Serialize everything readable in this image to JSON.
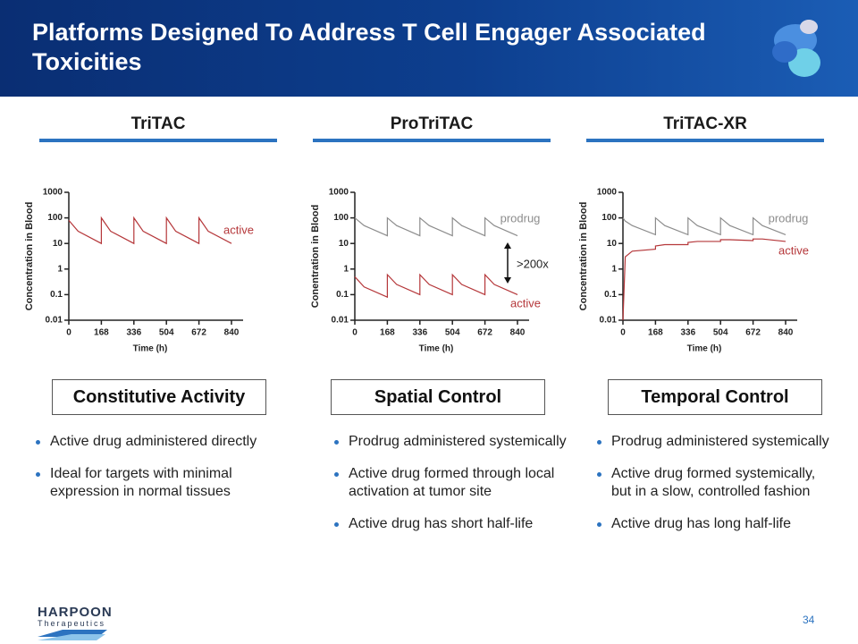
{
  "title": "Platforms Designed To Address T Cell Engager Associated Toxicities",
  "columns": [
    {
      "heading": "TriTAC",
      "box": "Constitutive Activity",
      "bullets": [
        "Active drug administered directly",
        "Ideal for targets with minimal expression in normal tissues"
      ]
    },
    {
      "heading": "ProTriTAC",
      "box": "Spatial Control",
      "bullets": [
        "Prodrug administered systemically",
        "Active drug formed through local activation at tumor site",
        "Active drug has short half-life"
      ]
    },
    {
      "heading": "TriTAC-XR",
      "box": "Temporal Control",
      "bullets": [
        "Prodrug administered systemically",
        "Active drug formed systemically, but in a slow, controlled fashion",
        "Active drug has long half-life"
      ]
    }
  ],
  "chart_data": [
    {
      "type": "line",
      "yscale": "log",
      "ylabel": "Concentration in Blood",
      "xlabel": "Time (h)",
      "xlim": [
        0,
        900
      ],
      "xticks": [
        0,
        168,
        336,
        504,
        672,
        840
      ],
      "ylim": [
        0.01,
        1000
      ],
      "yticks": [
        0.01,
        0.1,
        1,
        10,
        100,
        1000
      ],
      "x": [
        0,
        48,
        168,
        168,
        216,
        336,
        336,
        384,
        504,
        504,
        552,
        672,
        672,
        720,
        840
      ],
      "series": [
        {
          "name": "active",
          "color": "#b5373a",
          "values": [
            80,
            30,
            10,
            100,
            30,
            10,
            100,
            30,
            10,
            100,
            30,
            10,
            100,
            30,
            10
          ]
        }
      ]
    },
    {
      "type": "line",
      "yscale": "log",
      "ylabel": "Conentration in Blood",
      "xlabel": "Time (h)",
      "xlim": [
        0,
        900
      ],
      "xticks": [
        0,
        168,
        336,
        504,
        672,
        840
      ],
      "ylim": [
        0.01,
        1000
      ],
      "yticks": [
        0.01,
        0.1,
        1,
        10,
        100,
        1000
      ],
      "annotations": [
        ">200x"
      ],
      "x": [
        0,
        48,
        168,
        168,
        216,
        336,
        336,
        384,
        504,
        504,
        552,
        672,
        672,
        720,
        840
      ],
      "series": [
        {
          "name": "prodrug",
          "color": "#8c8c8c",
          "values": [
            100,
            50,
            20,
            100,
            50,
            20,
            100,
            50,
            20,
            100,
            50,
            20,
            100,
            50,
            20
          ]
        },
        {
          "name": "active",
          "color": "#b5373a",
          "values": [
            0.5,
            0.2,
            0.08,
            0.6,
            0.25,
            0.1,
            0.6,
            0.25,
            0.1,
            0.6,
            0.25,
            0.1,
            0.6,
            0.25,
            0.1
          ]
        }
      ]
    },
    {
      "type": "line",
      "yscale": "log",
      "ylabel": "Concentration in Blood",
      "xlabel": "Time (h)",
      "xlim": [
        0,
        900
      ],
      "xticks": [
        0,
        168,
        336,
        504,
        672,
        840
      ],
      "ylim": [
        0.01,
        1000
      ],
      "yticks": [
        0.01,
        0.1,
        1,
        10,
        100,
        1000
      ],
      "x": [
        0,
        12,
        48,
        168,
        168,
        216,
        336,
        336,
        384,
        504,
        504,
        552,
        672,
        672,
        720,
        840
      ],
      "series": [
        {
          "name": "prodrug",
          "color": "#8c8c8c",
          "values": [
            100,
            75,
            50,
            22,
            100,
            50,
            22,
            100,
            50,
            22,
            100,
            50,
            22,
            100,
            50,
            22
          ]
        },
        {
          "name": "active",
          "color": "#b5373a",
          "values": [
            0.01,
            3,
            5,
            6,
            8,
            9,
            9,
            11,
            12,
            12,
            14,
            14,
            13,
            15,
            15,
            12
          ]
        }
      ]
    }
  ],
  "footer": {
    "logo_name": "HARPOON",
    "logo_sub": "Therapeutics",
    "page": 34
  }
}
